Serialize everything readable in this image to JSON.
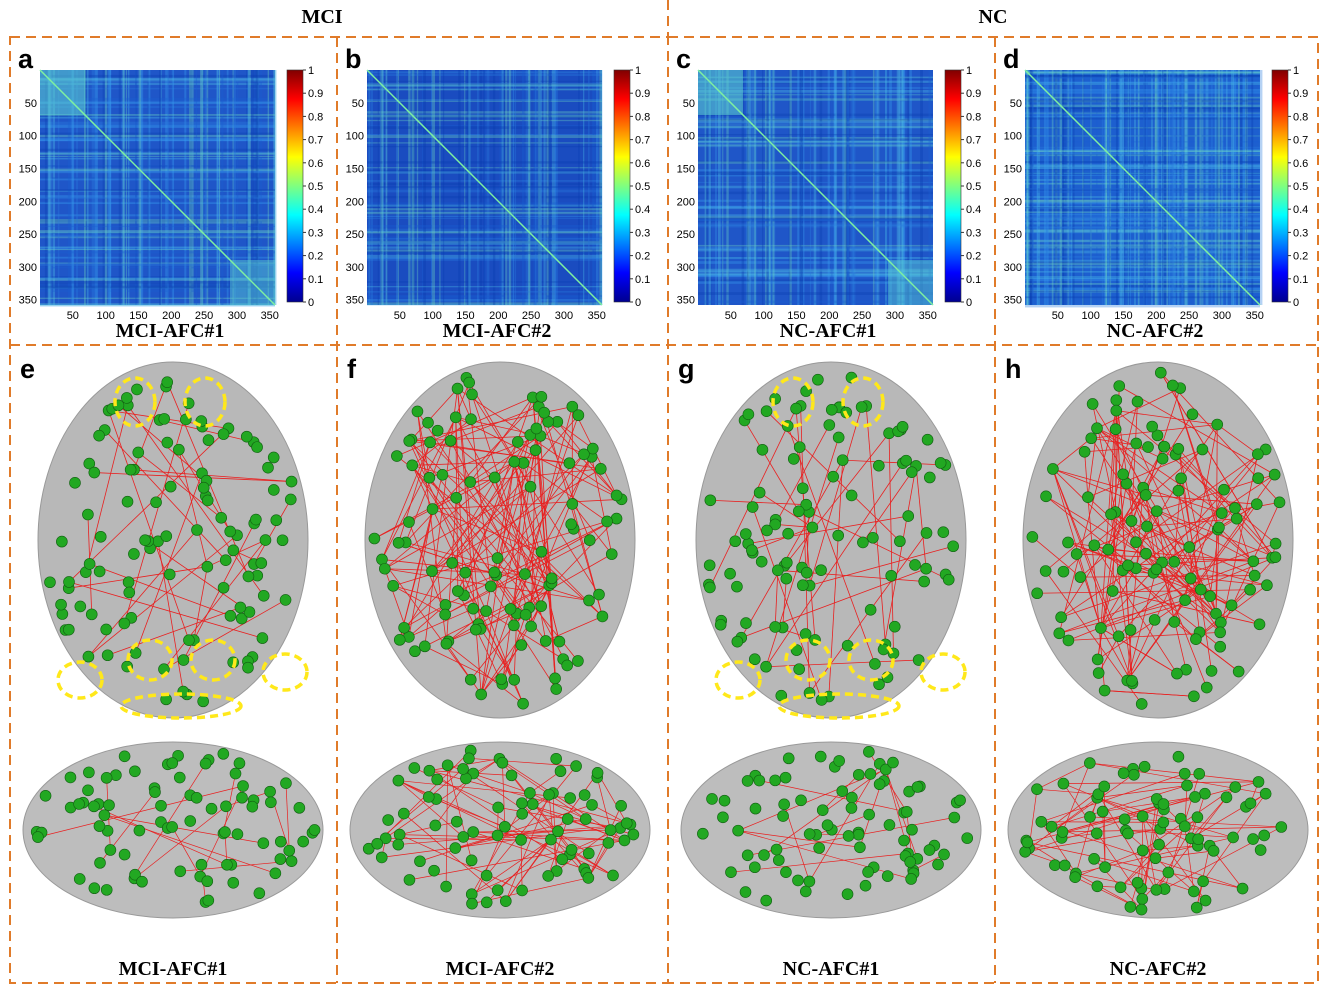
{
  "groups": [
    {
      "label": "MCI"
    },
    {
      "label": "NC"
    }
  ],
  "matrix_panels": [
    {
      "letter": "a",
      "caption": "MCI-AFC#1"
    },
    {
      "letter": "b",
      "caption": "MCI-AFC#2"
    },
    {
      "letter": "c",
      "caption": "NC-AFC#1"
    },
    {
      "letter": "d",
      "caption": "NC-AFC#2"
    }
  ],
  "brain_panels": [
    {
      "letter": "e",
      "caption": "MCI-AFC#1"
    },
    {
      "letter": "f",
      "caption": "MCI-AFC#2"
    },
    {
      "letter": "g",
      "caption": "NC-AFC#1"
    },
    {
      "letter": "h",
      "caption": "NC-AFC#2"
    }
  ],
  "matrix_ticks": [
    50,
    100,
    150,
    200,
    250,
    300,
    350
  ],
  "matrix_size": 358,
  "colorbar_ticks": [
    0,
    0.1,
    0.2,
    0.3,
    0.4,
    0.5,
    0.6,
    0.7,
    0.8,
    0.9,
    1
  ]
}
